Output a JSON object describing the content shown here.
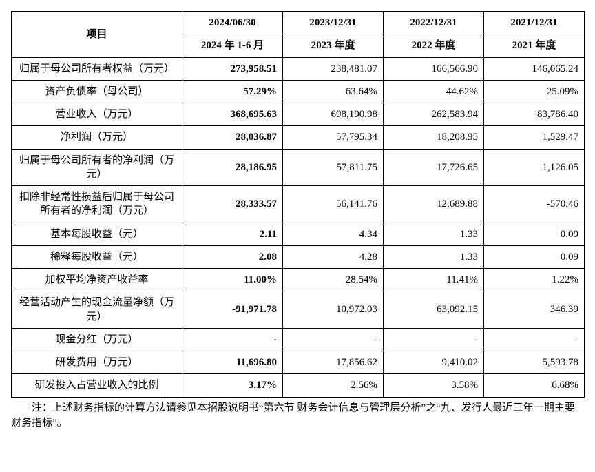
{
  "table": {
    "header": {
      "item": "项目",
      "dates": [
        "2024/06/30",
        "2023/12/31",
        "2022/12/31",
        "2021/12/31"
      ],
      "periods": [
        "2024 年 1-6 月",
        "2023 年度",
        "2022 年度",
        "2021 年度"
      ]
    },
    "rows": [
      {
        "label": "归属于母公司所有者权益（万元）",
        "vals": [
          "273,958.51",
          "238,481.07",
          "166,566.90",
          "146,065.24"
        ]
      },
      {
        "label": "资产负债率（母公司）",
        "vals": [
          "57.29%",
          "63.64%",
          "44.62%",
          "25.09%"
        ]
      },
      {
        "label": "营业收入（万元）",
        "vals": [
          "368,695.63",
          "698,190.98",
          "262,583.94",
          "83,786.40"
        ]
      },
      {
        "label": "净利润（万元）",
        "vals": [
          "28,036.87",
          "57,795.34",
          "18,208.95",
          "1,529.47"
        ]
      },
      {
        "label": "归属于母公司所有者的净利润（万元）",
        "vals": [
          "28,186.95",
          "57,811.75",
          "17,726.65",
          "1,126.05"
        ]
      },
      {
        "label": "扣除非经常性损益后归属于母公司所有者的净利润（万元）",
        "vals": [
          "28,333.57",
          "56,141.76",
          "12,689.88",
          "-570.46"
        ]
      },
      {
        "label": "基本每股收益（元）",
        "vals": [
          "2.11",
          "4.34",
          "1.33",
          "0.09"
        ]
      },
      {
        "label": "稀释每股收益（元）",
        "vals": [
          "2.08",
          "4.28",
          "1.33",
          "0.09"
        ]
      },
      {
        "label": "加权平均净资产收益率",
        "vals": [
          "11.00%",
          "28.54%",
          "11.41%",
          "1.22%"
        ]
      },
      {
        "label": "经营活动产生的现金流量净额（万元）",
        "vals": [
          "-91,971.78",
          "10,972.03",
          "63,092.15",
          "346.39"
        ]
      },
      {
        "label": "现金分红（万元）",
        "vals": [
          "-",
          "-",
          "-",
          "-"
        ]
      },
      {
        "label": "研发费用（万元）",
        "vals": [
          "11,696.80",
          "17,856.62",
          "9,410.02",
          "5,593.78"
        ]
      },
      {
        "label": "研发投入占营业收入的比例",
        "vals": [
          "3.17%",
          "2.56%",
          "3.58%",
          "6.68%"
        ]
      }
    ]
  },
  "footnote": "注：上述财务指标的计算方法请参见本招股说明书“第六节  财务会计信息与管理层分析”之“九、发行人最近三年一期主要财务指标”。",
  "style": {
    "bg": "#ffffff",
    "border": "#000000",
    "text": "#000000",
    "font_body_pt": 15,
    "bold_first_data_col": true
  }
}
